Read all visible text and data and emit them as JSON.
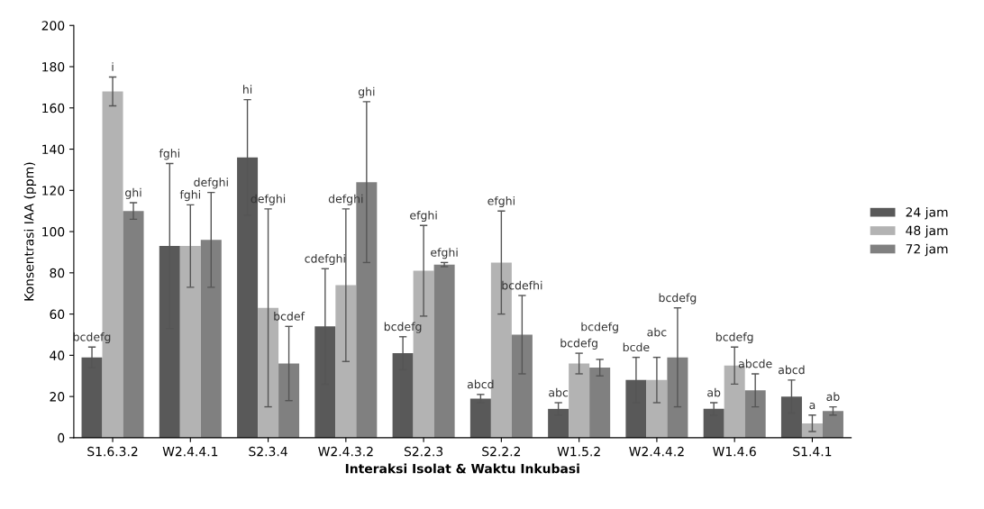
{
  "chart_data": {
    "type": "bar",
    "xlabel": "Interaksi Isolat & Waktu Inkubasi",
    "ylabel": "Konsentrasi IAA (ppm)",
    "categories": [
      "S1.6.3.2",
      "W2.4.4.1",
      "S2.3.4",
      "W2.4.3.2",
      "S2.2.3",
      "S2.2.2",
      "W1.5.2",
      "W2.4.4.2",
      "W1.4.6",
      "S1.4.1"
    ],
    "series": [
      {
        "name": "24 jam",
        "color": "#595959",
        "values": [
          39,
          93,
          136,
          54,
          41,
          19,
          14,
          28,
          14,
          20
        ],
        "errors": [
          5,
          40,
          28,
          28,
          8,
          2,
          3,
          11,
          3,
          8
        ]
      },
      {
        "name": "48 jam",
        "color": "#b3b3b3",
        "values": [
          168,
          93,
          63,
          74,
          81,
          85,
          36,
          28,
          35,
          7
        ],
        "errors": [
          7,
          20,
          48,
          37,
          22,
          25,
          5,
          11,
          9,
          4
        ]
      },
      {
        "name": "72 jam",
        "color": "#808080",
        "values": [
          110,
          96,
          36,
          124,
          84,
          50,
          34,
          39,
          23,
          13
        ],
        "errors": [
          4,
          23,
          18,
          39,
          1,
          19,
          4,
          24,
          8,
          2
        ]
      }
    ],
    "ylim": [
      0,
      200
    ],
    "yticks": [
      0,
      20,
      40,
      60,
      80,
      100,
      120,
      140,
      160,
      180,
      200
    ],
    "grid": false,
    "legend": "right",
    "annotations": [
      "bcdefg",
      "i",
      "ghi",
      "fghi",
      "fghi",
      "defghi",
      "hi",
      "defghi",
      "bcdef",
      "cdefghi",
      "defghi",
      "ghi",
      "bcdefg",
      "efghi",
      "efghi",
      "abcd",
      "efghi",
      "bcdefhi",
      "abc",
      "bcdefg",
      "bcdefg",
      "bcde",
      "abc",
      "bcdefg",
      "ab",
      "bcdefg",
      "abcde",
      "abcd",
      "a",
      "ab"
    ]
  }
}
